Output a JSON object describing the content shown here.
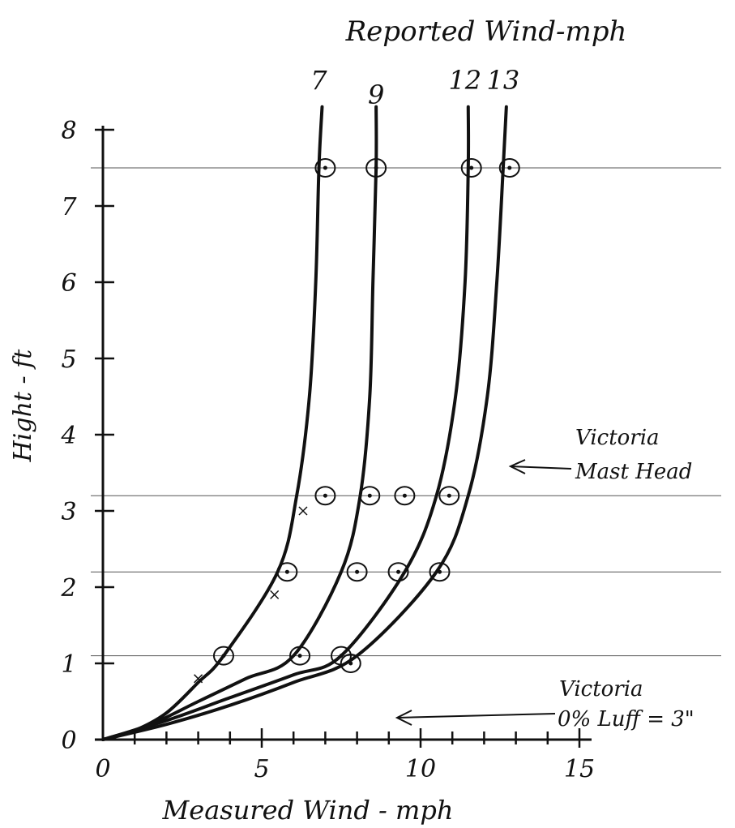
{
  "chart_data": {
    "type": "line",
    "title": "Reported Wind-mph",
    "xlabel": "Measured Wind - mph",
    "ylabel": "Hight - ft",
    "xlim": [
      0,
      15
    ],
    "ylim": [
      0,
      8
    ],
    "x_ticks": [
      0,
      5,
      10,
      15
    ],
    "x_tick_labels": [
      "0",
      "5",
      "10",
      "15"
    ],
    "y_ticks": [
      0,
      1,
      2,
      3,
      4,
      5,
      6,
      7,
      8
    ],
    "y_tick_labels": [
      "0",
      "1",
      "2",
      "3",
      "4",
      "5",
      "6",
      "7",
      "8"
    ],
    "reference_heights": [
      1.1,
      2.2,
      3.2,
      7.5
    ],
    "series": [
      {
        "name": "7",
        "curve": [
          [
            0,
            0
          ],
          [
            1,
            0.12
          ],
          [
            2,
            0.35
          ],
          [
            3,
            0.75
          ],
          [
            3.8,
            1.1
          ],
          [
            5.5,
            2.2
          ],
          [
            6.1,
            3.2
          ],
          [
            6.5,
            4.5
          ],
          [
            6.7,
            6
          ],
          [
            6.8,
            7.5
          ],
          [
            6.9,
            8.3
          ]
        ],
        "points": [
          [
            3.8,
            1.1
          ],
          [
            5.8,
            2.2
          ],
          [
            7.0,
            3.2
          ],
          [
            7.0,
            7.5
          ]
        ]
      },
      {
        "name": "9",
        "curve": [
          [
            0,
            0
          ],
          [
            1.5,
            0.2
          ],
          [
            3,
            0.5
          ],
          [
            4.5,
            0.8
          ],
          [
            6,
            1.1
          ],
          [
            7.5,
            2.2
          ],
          [
            8.1,
            3.2
          ],
          [
            8.4,
            4.5
          ],
          [
            8.5,
            6
          ],
          [
            8.6,
            7.5
          ],
          [
            8.6,
            8.3
          ]
        ],
        "points": [
          [
            6.2,
            1.1
          ],
          [
            8.0,
            2.2
          ],
          [
            8.4,
            3.2
          ],
          [
            8.6,
            7.5
          ]
        ]
      },
      {
        "name": "12",
        "curve": [
          [
            0,
            0
          ],
          [
            2,
            0.25
          ],
          [
            4,
            0.55
          ],
          [
            6,
            0.85
          ],
          [
            7.5,
            1.1
          ],
          [
            9.5,
            2.2
          ],
          [
            10.5,
            3.2
          ],
          [
            11.1,
            4.5
          ],
          [
            11.4,
            6
          ],
          [
            11.5,
            7.5
          ],
          [
            11.5,
            8.3
          ]
        ],
        "points": [
          [
            7.5,
            1.1
          ],
          [
            9.3,
            2.2
          ],
          [
            9.5,
            3.2
          ],
          [
            11.6,
            7.5
          ]
        ]
      },
      {
        "name": "13",
        "curve": [
          [
            0,
            0
          ],
          [
            2,
            0.2
          ],
          [
            4,
            0.45
          ],
          [
            6,
            0.75
          ],
          [
            8,
            1.1
          ],
          [
            10.5,
            2.2
          ],
          [
            11.5,
            3.2
          ],
          [
            12.1,
            4.5
          ],
          [
            12.4,
            6
          ],
          [
            12.6,
            7.5
          ],
          [
            12.7,
            8.3
          ]
        ],
        "points": [
          [
            7.8,
            1.0
          ],
          [
            10.6,
            2.2
          ],
          [
            10.9,
            3.2
          ],
          [
            12.8,
            7.5
          ]
        ]
      }
    ],
    "annotations": [
      {
        "text_lines": [
          "Victoria",
          "Mast Head"
        ],
        "points_to_height": 3.7
      },
      {
        "text_lines": [
          "Victoria",
          "0% Luff = 3\""
        ],
        "points_to_height": 0.35
      }
    ]
  }
}
